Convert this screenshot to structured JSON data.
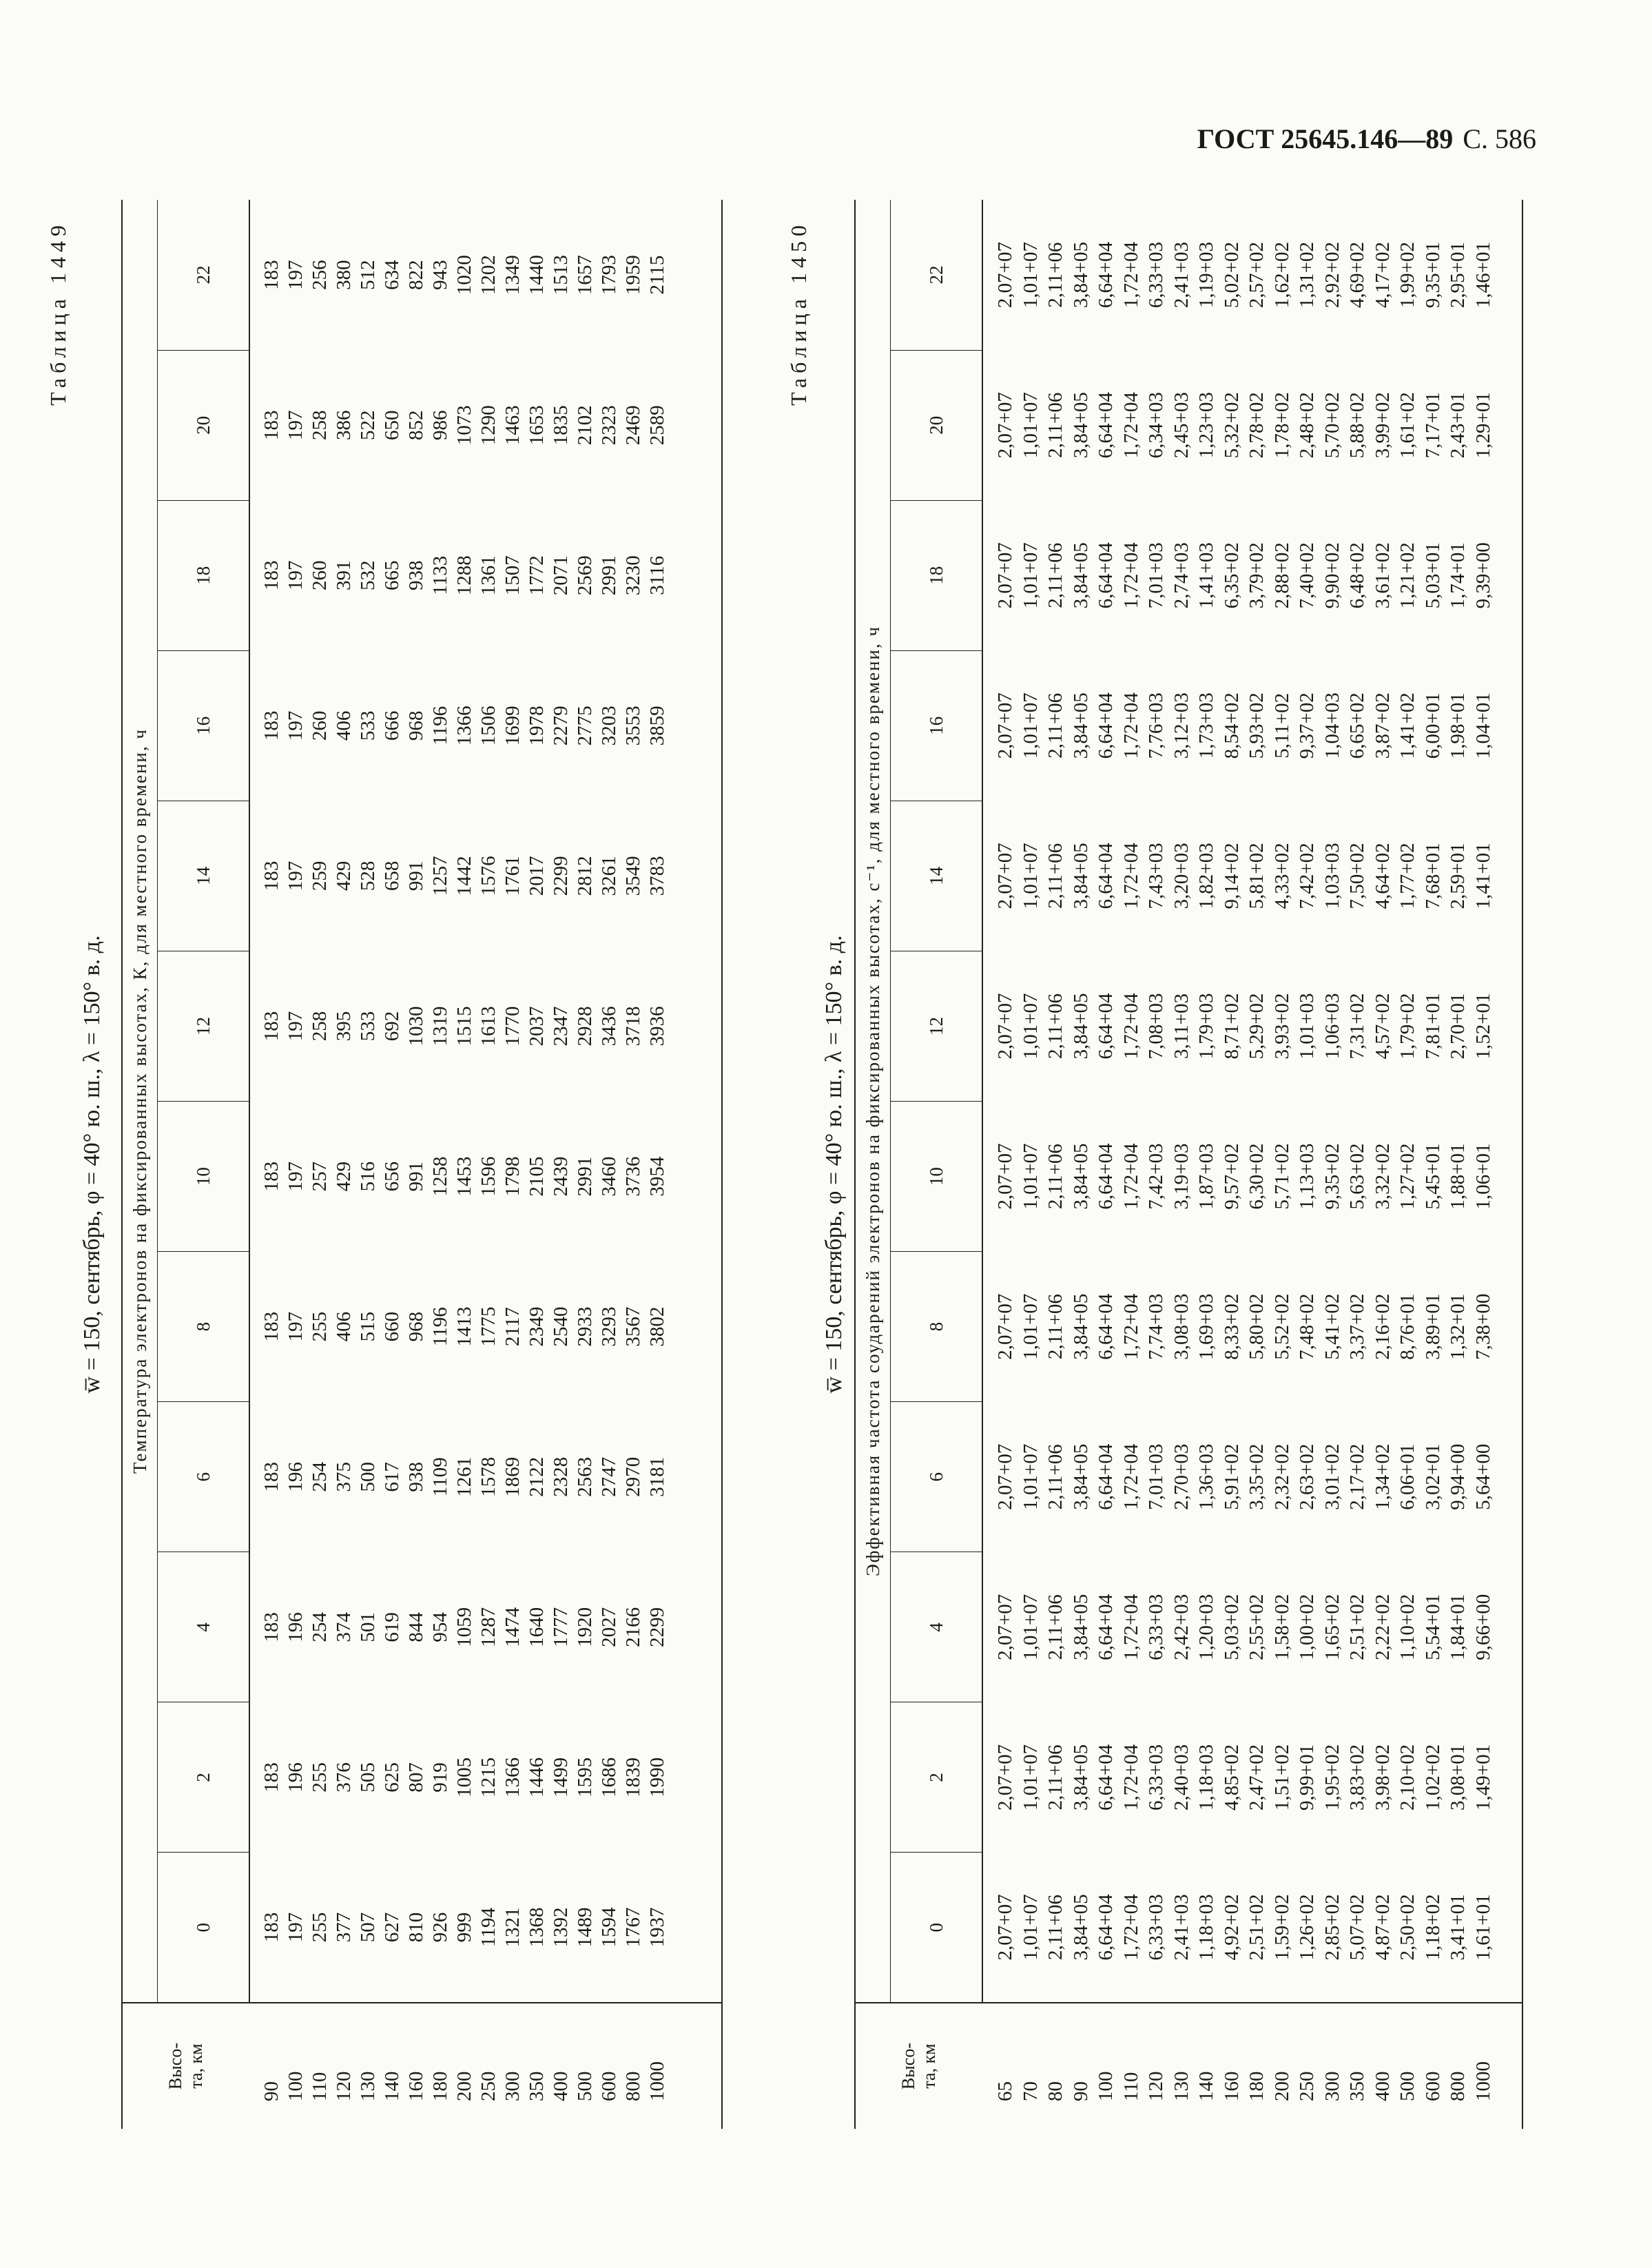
{
  "header": {
    "standard": "ГОСТ 25645.146—89",
    "page": "С. 586"
  },
  "tables": [
    {
      "label": "Таблица 1449",
      "title": "w̅ = 150, сентябрь, φ = 40° ю. ш., λ = 150° в. д.",
      "height_header": [
        "Высо-",
        "та, км"
      ],
      "group_header": "Температура электронов на фиксированных высотах, К, для местного времени, ч",
      "heights": [
        90,
        100,
        110,
        120,
        130,
        140,
        160,
        180,
        200,
        250,
        300,
        350,
        400,
        500,
        600,
        800,
        1000
      ],
      "columns": [
        {
          "time": 0,
          "values": [
            183,
            197,
            255,
            377,
            507,
            627,
            810,
            926,
            999,
            1194,
            1321,
            1368,
            1392,
            1489,
            1594,
            1767,
            1937
          ]
        },
        {
          "time": 2,
          "values": [
            183,
            196,
            255,
            376,
            505,
            625,
            807,
            919,
            1005,
            1215,
            1366,
            1446,
            1499,
            1595,
            1686,
            1839,
            1990
          ]
        },
        {
          "time": 4,
          "values": [
            183,
            196,
            254,
            374,
            501,
            619,
            844,
            954,
            1059,
            1287,
            1474,
            1640,
            1777,
            1920,
            2027,
            2166,
            2299
          ]
        },
        {
          "time": 6,
          "values": [
            183,
            196,
            254,
            375,
            500,
            617,
            938,
            1109,
            1261,
            1578,
            1869,
            2122,
            2328,
            2563,
            2747,
            2970,
            3181
          ]
        },
        {
          "time": 8,
          "values": [
            183,
            197,
            255,
            406,
            515,
            660,
            968,
            1196,
            1413,
            1775,
            2117,
            2349,
            2540,
            2933,
            3293,
            3567,
            3802
          ]
        },
        {
          "time": 10,
          "values": [
            183,
            197,
            257,
            429,
            516,
            656,
            991,
            1258,
            1453,
            1596,
            1798,
            2105,
            2439,
            2991,
            3460,
            3736,
            3954
          ]
        },
        {
          "time": 12,
          "values": [
            183,
            197,
            258,
            395,
            533,
            692,
            1030,
            1319,
            1515,
            1613,
            1770,
            2037,
            2347,
            2928,
            3436,
            3718,
            3936
          ]
        },
        {
          "time": 14,
          "values": [
            183,
            197,
            259,
            429,
            528,
            658,
            991,
            1257,
            1442,
            1576,
            1761,
            2017,
            2299,
            2812,
            3261,
            3549,
            3783
          ]
        },
        {
          "time": 16,
          "values": [
            183,
            197,
            260,
            406,
            533,
            666,
            968,
            1196,
            1366,
            1506,
            1699,
            1978,
            2279,
            2775,
            3203,
            3553,
            3859
          ]
        },
        {
          "time": 18,
          "values": [
            183,
            197,
            260,
            391,
            532,
            665,
            938,
            1133,
            1288,
            1361,
            1507,
            1772,
            2071,
            2569,
            2991,
            3230,
            3116
          ]
        },
        {
          "time": 20,
          "values": [
            183,
            197,
            258,
            386,
            522,
            650,
            852,
            986,
            1073,
            1290,
            1463,
            1653,
            1835,
            2102,
            2323,
            2469,
            2589
          ]
        },
        {
          "time": 22,
          "values": [
            183,
            197,
            256,
            380,
            512,
            634,
            822,
            943,
            1020,
            1202,
            1349,
            1440,
            1513,
            1657,
            1793,
            1959,
            2115
          ]
        }
      ]
    },
    {
      "label": "Таблица 1450",
      "title": "w̅ = 150, сентябрь, φ = 40° ю. ш., λ = 150° в. д.",
      "height_header": [
        "Высо-",
        "та, км"
      ],
      "group_header": "Эффективная частота соударений электронов на фиксированных высотах, с⁻¹, для местного времени, ч",
      "heights": [
        65,
        70,
        80,
        90,
        100,
        110,
        120,
        130,
        140,
        160,
        180,
        200,
        250,
        300,
        350,
        400,
        500,
        600,
        800,
        1000
      ],
      "columns": [
        {
          "time": 0,
          "values": [
            "2,07+07",
            "1,01+07",
            "2,11+06",
            "3,84+05",
            "6,64+04",
            "1,72+04",
            "6,33+03",
            "2,41+03",
            "1,18+03",
            "4,92+02",
            "2,51+02",
            "1,59+02",
            "1,26+02",
            "2,85+02",
            "5,07+02",
            "4,87+02",
            "2,50+02",
            "1,18+02",
            "3,41+01",
            "1,61+01"
          ]
        },
        {
          "time": 2,
          "values": [
            "2,07+07",
            "1,01+07",
            "2,11+06",
            "3,84+05",
            "6,64+04",
            "1,72+04",
            "6,33+03",
            "2,40+03",
            "1,18+03",
            "4,85+02",
            "2,47+02",
            "1,51+02",
            "9,99+01",
            "1,95+02",
            "3,83+02",
            "3,98+02",
            "2,10+02",
            "1,02+02",
            "3,08+01",
            "1,49+01"
          ]
        },
        {
          "time": 4,
          "values": [
            "2,07+07",
            "1,01+07",
            "2,11+06",
            "3,84+05",
            "6,64+04",
            "1,72+04",
            "6,33+03",
            "2,42+03",
            "1,20+03",
            "5,03+02",
            "2,55+02",
            "1,58+02",
            "1,00+02",
            "1,65+02",
            "2,51+02",
            "2,22+02",
            "1,10+02",
            "5,54+01",
            "1,84+01",
            "9,66+00"
          ]
        },
        {
          "time": 6,
          "values": [
            "2,07+07",
            "1,01+07",
            "2,11+06",
            "3,84+05",
            "6,64+04",
            "1,72+04",
            "7,01+03",
            "2,70+03",
            "1,36+03",
            "5,91+02",
            "3,35+02",
            "2,32+02",
            "2,63+02",
            "3,01+02",
            "2,17+02",
            "1,34+02",
            "6,06+01",
            "3,02+01",
            "9,94+00",
            "5,64+00"
          ]
        },
        {
          "time": 8,
          "values": [
            "2,07+07",
            "1,01+07",
            "2,11+06",
            "3,84+05",
            "6,64+04",
            "1,72+04",
            "7,74+03",
            "3,08+03",
            "1,69+03",
            "8,33+02",
            "5,80+02",
            "5,52+02",
            "7,48+02",
            "5,41+02",
            "3,37+02",
            "2,16+02",
            "8,76+01",
            "3,89+01",
            "1,32+01",
            "7,38+00"
          ]
        },
        {
          "time": 10,
          "values": [
            "2,07+07",
            "1,01+07",
            "2,11+06",
            "3,84+05",
            "6,64+04",
            "1,72+04",
            "7,42+03",
            "3,19+03",
            "1,87+03",
            "9,57+02",
            "6,30+02",
            "5,71+02",
            "1,13+03",
            "9,35+02",
            "5,63+02",
            "3,32+02",
            "1,27+02",
            "5,45+01",
            "1,88+01",
            "1,06+01"
          ]
        },
        {
          "time": 12,
          "values": [
            "2,07+07",
            "1,01+07",
            "2,11+06",
            "3,84+05",
            "6,64+04",
            "1,72+04",
            "7,08+03",
            "3,11+03",
            "1,79+03",
            "8,71+02",
            "5,29+02",
            "3,93+02",
            "1,01+03",
            "1,06+03",
            "7,31+02",
            "4,57+02",
            "1,79+02",
            "7,81+01",
            "2,70+01",
            "1,52+01"
          ]
        },
        {
          "time": 14,
          "values": [
            "2,07+07",
            "1,01+07",
            "2,11+06",
            "3,84+05",
            "6,64+04",
            "1,72+04",
            "7,43+03",
            "3,20+03",
            "1,82+03",
            "9,14+02",
            "5,81+02",
            "4,33+02",
            "7,42+02",
            "1,03+03",
            "7,50+02",
            "4,64+02",
            "1,77+02",
            "7,68+01",
            "2,59+01",
            "1,41+01"
          ]
        },
        {
          "time": 16,
          "values": [
            "2,07+07",
            "1,01+07",
            "2,11+06",
            "3,84+05",
            "6,64+04",
            "1,72+04",
            "7,76+03",
            "3,12+03",
            "1,73+03",
            "8,54+02",
            "5,93+02",
            "5,11+02",
            "9,37+02",
            "1,04+03",
            "6,65+02",
            "3,87+02",
            "1,41+02",
            "6,00+01",
            "1,98+01",
            "1,04+01"
          ]
        },
        {
          "time": 18,
          "values": [
            "2,07+07",
            "1,01+07",
            "2,11+06",
            "3,84+05",
            "6,64+04",
            "1,72+04",
            "7,01+03",
            "2,74+03",
            "1,41+03",
            "6,35+02",
            "3,79+02",
            "2,88+02",
            "7,40+02",
            "9,90+02",
            "6,48+02",
            "3,61+02",
            "1,21+02",
            "5,03+01",
            "1,74+01",
            "9,39+00"
          ]
        },
        {
          "time": 20,
          "values": [
            "2,07+07",
            "1,01+07",
            "2,11+06",
            "3,84+05",
            "6,64+04",
            "1,72+04",
            "6,34+03",
            "2,45+03",
            "1,23+03",
            "5,32+02",
            "2,78+02",
            "1,78+02",
            "2,48+02",
            "5,70+02",
            "5,88+02",
            "3,99+02",
            "1,61+02",
            "7,17+01",
            "2,43+01",
            "1,29+01"
          ]
        },
        {
          "time": 22,
          "values": [
            "2,07+07",
            "1,01+07",
            "2,11+06",
            "3,84+05",
            "6,64+04",
            "1,72+04",
            "6,33+03",
            "2,41+03",
            "1,19+03",
            "5,02+02",
            "2,57+02",
            "1,62+02",
            "1,31+02",
            "2,92+02",
            "4,69+02",
            "4,17+02",
            "1,99+02",
            "9,35+01",
            "2,95+01",
            "1,46+01"
          ]
        }
      ]
    }
  ]
}
